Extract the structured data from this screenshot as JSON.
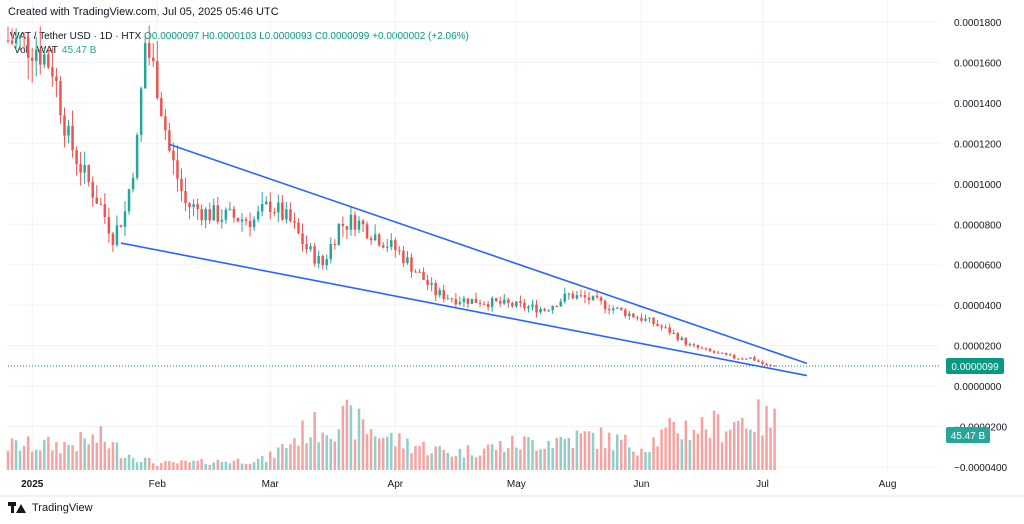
{
  "header": {
    "created": "Created with TradingView.com, Jul 05, 2025 05:46 UTC"
  },
  "legend": {
    "symbol": "WAT / Tether USD · 1D · HTX",
    "open": "O0.0000097",
    "high": "H0.0000103",
    "low": "L0.0000093",
    "close": "C0.0000099",
    "change": "+0.0000002 (+2.06%)",
    "vol_label": "Vol · WAT",
    "vol_value": "45.47 B"
  },
  "footer": {
    "brand": "TradingView"
  },
  "colors": {
    "up": "#26a69a",
    "down": "#ef5350",
    "vol_up": "#8fcfc7",
    "vol_down": "#f4a3a1",
    "trendline": "#2962ff",
    "price_tag": "#089981",
    "vol_tag": "#26a69a"
  },
  "chart_data": {
    "type": "candlestick",
    "y_axis": {
      "ticks": [
        0.00018,
        0.00016,
        0.00014,
        0.00012,
        0.0001,
        8e-05,
        6e-05,
        4e-05,
        2e-05,
        0,
        -2e-05,
        -4e-05
      ],
      "tick_labels": [
        "0.0001800",
        "0.0001600",
        "0.0001400",
        "0.0001200",
        "0.0001000",
        "0.0000800",
        "0.0000600",
        "0.0000400",
        "0.0000200",
        "0.0000000",
        "−0.0000200",
        "−0.0000400"
      ],
      "range": [
        -4.25e-05,
        0.000181
      ]
    },
    "x_axis": {
      "labels": [
        {
          "text": "2025",
          "date": "2025-01-01",
          "year": true
        },
        {
          "text": "Feb",
          "date": "2025-02-01"
        },
        {
          "text": "Mar",
          "date": "2025-03-01"
        },
        {
          "text": "Apr",
          "date": "2025-04-01"
        },
        {
          "text": "May",
          "date": "2025-05-01"
        },
        {
          "text": "Jun",
          "date": "2025-06-01"
        },
        {
          "text": "Jul",
          "date": "2025-07-01"
        },
        {
          "text": "Aug",
          "date": "2025-08-01"
        }
      ],
      "start_date": "2024-12-26",
      "end_date": "2025-08-14"
    },
    "last_price": {
      "value": 9.9e-06,
      "label": "0.0000099"
    },
    "volume_tag": {
      "label": "45.47 B"
    },
    "trendlines": [
      {
        "name": "upper",
        "from": [
          "2025-02-04",
          0.0001195
        ],
        "to": [
          "2025-07-12",
          1.12e-05
        ]
      },
      {
        "name": "lower",
        "from": [
          "2025-01-23",
          7.07e-05
        ],
        "to": [
          "2025-07-12",
          5.2e-06
        ]
      }
    ],
    "anchors": [
      [
        "2024-12-26",
        0.000171
      ],
      [
        "2025-01-02",
        0.000168
      ],
      [
        "2025-01-06",
        0.000158
      ],
      [
        "2025-01-10",
        0.000122
      ],
      [
        "2025-01-14",
        0.000104
      ],
      [
        "2025-01-18",
        8.9e-05
      ],
      [
        "2025-01-21",
        7.4e-05
      ],
      [
        "2025-01-24",
        8.6e-05
      ],
      [
        "2025-01-27",
        0.00012
      ],
      [
        "2025-01-29",
        0.00017
      ],
      [
        "2025-02-01",
        0.00015
      ],
      [
        "2025-02-04",
        0.000116
      ],
      [
        "2025-02-08",
        9e-05
      ],
      [
        "2025-02-14",
        8.5e-05
      ],
      [
        "2025-02-25",
        8.2e-05
      ],
      [
        "2025-03-01",
        9e-05
      ],
      [
        "2025-03-06",
        8.1e-05
      ],
      [
        "2025-03-10",
        6.8e-05
      ],
      [
        "2025-03-14",
        6e-05
      ],
      [
        "2025-03-18",
        7.9e-05
      ],
      [
        "2025-03-22",
        8.2e-05
      ],
      [
        "2025-04-02",
        6.6e-05
      ],
      [
        "2025-04-07",
        5.5e-05
      ],
      [
        "2025-04-11",
        4.6e-05
      ],
      [
        "2025-04-16",
        4.3e-05
      ],
      [
        "2025-04-22",
        4.2e-05
      ],
      [
        "2025-05-08",
        3.8e-05
      ],
      [
        "2025-05-14",
        4.5e-05
      ],
      [
        "2025-05-19",
        4.3e-05
      ],
      [
        "2025-05-27",
        3.7e-05
      ],
      [
        "2025-06-03",
        3.2e-05
      ],
      [
        "2025-06-08",
        2.7e-05
      ],
      [
        "2025-06-13",
        2e-05
      ],
      [
        "2025-06-18",
        1.7e-05
      ],
      [
        "2025-06-24",
        1.4e-05
      ],
      [
        "2025-06-28",
        1.4e-05
      ],
      [
        "2025-07-02",
        1e-05
      ],
      [
        "2025-07-04",
        9.9e-06
      ]
    ],
    "volume_anchors": [
      [
        "2024-12-26",
        0.23
      ],
      [
        "2025-01-10",
        0.24
      ],
      [
        "2025-01-18",
        0.3
      ],
      [
        "2025-01-24",
        0.16
      ],
      [
        "2025-02-01",
        0.06
      ],
      [
        "2025-02-15",
        0.08
      ],
      [
        "2025-02-28",
        0.1
      ],
      [
        "2025-03-10",
        0.38
      ],
      [
        "2025-03-20",
        0.48
      ],
      [
        "2025-04-01",
        0.28
      ],
      [
        "2025-04-15",
        0.16
      ],
      [
        "2025-05-01",
        0.25
      ],
      [
        "2025-05-20",
        0.32
      ],
      [
        "2025-06-01",
        0.22
      ],
      [
        "2025-06-10",
        0.4
      ],
      [
        "2025-06-20",
        0.42
      ],
      [
        "2025-06-28",
        0.5
      ],
      [
        "2025-07-04",
        0.45
      ]
    ]
  }
}
